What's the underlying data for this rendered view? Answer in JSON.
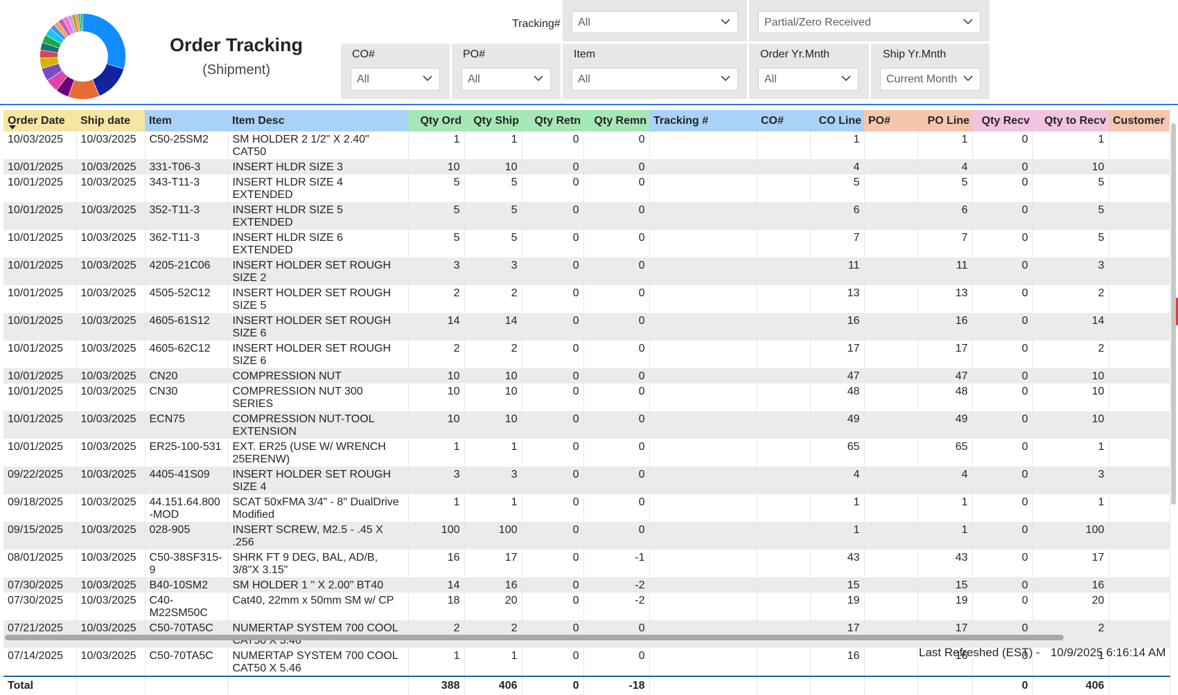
{
  "header": {
    "title": "Order Tracking",
    "subtitle": "(Shipment)"
  },
  "donut": {
    "colors": [
      "#118dff",
      "#12239e",
      "#e66c37",
      "#6b007b",
      "#e044a7",
      "#744ec2",
      "#d9b300",
      "#d64550",
      "#197278",
      "#1aab40",
      "#15c6f4",
      "#4092ff",
      "#ffa058",
      "#be5dc9",
      "#f472d0",
      "#b5a1ff",
      "#c4a200",
      "#ff8080",
      "#00db66",
      "#2c8c92"
    ],
    "values": [
      30,
      14,
      12,
      5,
      5,
      5,
      4,
      3,
      3,
      3,
      3,
      2,
      2,
      2,
      2,
      1.5,
      1.5,
      1,
      1,
      0.8
    ]
  },
  "filters": {
    "tracking_label": "Tracking#",
    "tracking_value": "All",
    "received_value": "Partial/Zero Received",
    "co_title": "CO#",
    "co_value": "All",
    "po_title": "PO#",
    "po_value": "All",
    "item_title": "Item",
    "item_value": "All",
    "order_title": "Order Yr.Mnth",
    "order_value": "All",
    "ship_title": "Ship Yr.Mnth",
    "ship_value": "Current Month"
  },
  "table": {
    "columns": [
      {
        "label": "Order Date",
        "color": "#f5e6a3"
      },
      {
        "label": "Ship date",
        "color": "#f5e6a3"
      },
      {
        "label": "Item",
        "color": "#a9d3f6"
      },
      {
        "label": "Item Desc",
        "color": "#a9d3f6"
      },
      {
        "label": "Qty Ord",
        "color": "#a6e7b8"
      },
      {
        "label": "Qty Ship",
        "color": "#a6e7b8"
      },
      {
        "label": "Qty Retn",
        "color": "#a6e7b8"
      },
      {
        "label": "Qty Remn",
        "color": "#a6e7b8"
      },
      {
        "label": "Tracking #",
        "color": "#a9d3f6"
      },
      {
        "label": "CO#",
        "color": "#a9d3f6"
      },
      {
        "label": "CO Line",
        "color": "#a9d3f6"
      },
      {
        "label": "PO#",
        "color": "#f5c6ad"
      },
      {
        "label": "PO Line",
        "color": "#f5c6ad"
      },
      {
        "label": "Qty Recv",
        "color": "#f3c4e2"
      },
      {
        "label": "Qty to Recv",
        "color": "#f3c4e2"
      },
      {
        "label": "Customer",
        "color": "#f5c6ad"
      }
    ],
    "rows": [
      {
        "order_date": "10/03/2025",
        "ship_date": "10/03/2025",
        "item": "C50-25SM2",
        "desc": "SM HOLDER 2 1/2\" X 2.40\" CAT50",
        "qty_ord": "1",
        "qty_ship": "1",
        "qty_retn": "0",
        "qty_remn": "0",
        "co_line": "1",
        "po_line": "1",
        "qty_recv": "0",
        "qty_to_recv": "1",
        "tall": true
      },
      {
        "order_date": "10/01/2025",
        "ship_date": "10/03/2025",
        "item": "331-T06-3",
        "desc": "INSERT HLDR SIZE 3",
        "qty_ord": "10",
        "qty_ship": "10",
        "qty_retn": "0",
        "qty_remn": "0",
        "co_line": "4",
        "po_line": "4",
        "qty_recv": "0",
        "qty_to_recv": "10"
      },
      {
        "order_date": "10/01/2025",
        "ship_date": "10/03/2025",
        "item": "343-T11-3",
        "desc": "INSERT HLDR SIZE 4 EXTENDED",
        "qty_ord": "5",
        "qty_ship": "5",
        "qty_retn": "0",
        "qty_remn": "0",
        "co_line": "5",
        "po_line": "5",
        "qty_recv": "0",
        "qty_to_recv": "5"
      },
      {
        "order_date": "10/01/2025",
        "ship_date": "10/03/2025",
        "item": "352-T11-3",
        "desc": "INSERT HLDR SIZE 5 EXTENDED",
        "qty_ord": "5",
        "qty_ship": "5",
        "qty_retn": "0",
        "qty_remn": "0",
        "co_line": "6",
        "po_line": "6",
        "qty_recv": "0",
        "qty_to_recv": "5"
      },
      {
        "order_date": "10/01/2025",
        "ship_date": "10/03/2025",
        "item": "362-T11-3",
        "desc": "INSERT HLDR SIZE 6 EXTENDED",
        "qty_ord": "5",
        "qty_ship": "5",
        "qty_retn": "0",
        "qty_remn": "0",
        "co_line": "7",
        "po_line": "7",
        "qty_recv": "0",
        "qty_to_recv": "5"
      },
      {
        "order_date": "10/01/2025",
        "ship_date": "10/03/2025",
        "item": "4205-21C06",
        "desc": "INSERT HOLDER SET ROUGH SIZE 2",
        "qty_ord": "3",
        "qty_ship": "3",
        "qty_retn": "0",
        "qty_remn": "0",
        "co_line": "11",
        "po_line": "11",
        "qty_recv": "0",
        "qty_to_recv": "3"
      },
      {
        "order_date": "10/01/2025",
        "ship_date": "10/03/2025",
        "item": "4505-52C12",
        "desc": "INSERT HOLDER SET ROUGH SIZE 5",
        "qty_ord": "2",
        "qty_ship": "2",
        "qty_retn": "0",
        "qty_remn": "0",
        "co_line": "13",
        "po_line": "13",
        "qty_recv": "0",
        "qty_to_recv": "2"
      },
      {
        "order_date": "10/01/2025",
        "ship_date": "10/03/2025",
        "item": "4605-61S12",
        "desc": "INSERT HOLDER SET ROUGH SIZE 6",
        "qty_ord": "14",
        "qty_ship": "14",
        "qty_retn": "0",
        "qty_remn": "0",
        "co_line": "16",
        "po_line": "16",
        "qty_recv": "0",
        "qty_to_recv": "14"
      },
      {
        "order_date": "10/01/2025",
        "ship_date": "10/03/2025",
        "item": "4605-62C12",
        "desc": "INSERT HOLDER SET ROUGH SIZE 6",
        "qty_ord": "2",
        "qty_ship": "2",
        "qty_retn": "0",
        "qty_remn": "0",
        "co_line": "17",
        "po_line": "17",
        "qty_recv": "0",
        "qty_to_recv": "2"
      },
      {
        "order_date": "10/01/2025",
        "ship_date": "10/03/2025",
        "item": "CN20",
        "desc": "COMPRESSION NUT",
        "qty_ord": "10",
        "qty_ship": "10",
        "qty_retn": "0",
        "qty_remn": "0",
        "co_line": "47",
        "po_line": "47",
        "qty_recv": "0",
        "qty_to_recv": "10"
      },
      {
        "order_date": "10/01/2025",
        "ship_date": "10/03/2025",
        "item": "CN30",
        "desc": "COMPRESSION NUT 300 SERIES",
        "qty_ord": "10",
        "qty_ship": "10",
        "qty_retn": "0",
        "qty_remn": "0",
        "co_line": "48",
        "po_line": "48",
        "qty_recv": "0",
        "qty_to_recv": "10"
      },
      {
        "order_date": "10/01/2025",
        "ship_date": "10/03/2025",
        "item": "ECN75",
        "desc": "COMPRESSION NUT-TOOL EXTENSION",
        "qty_ord": "10",
        "qty_ship": "10",
        "qty_retn": "0",
        "qty_remn": "0",
        "co_line": "49",
        "po_line": "49",
        "qty_recv": "0",
        "qty_to_recv": "10"
      },
      {
        "order_date": "10/01/2025",
        "ship_date": "10/03/2025",
        "item": "ER25-100-531",
        "desc": "EXT. ER25 (USE W/ WRENCH 25ERENW)",
        "qty_ord": "1",
        "qty_ship": "1",
        "qty_retn": "0",
        "qty_remn": "0",
        "co_line": "65",
        "po_line": "65",
        "qty_recv": "0",
        "qty_to_recv": "1"
      },
      {
        "order_date": "09/22/2025",
        "ship_date": "10/03/2025",
        "item": "4405-41S09",
        "desc": "INSERT HOLDER SET ROUGH SIZE 4",
        "qty_ord": "3",
        "qty_ship": "3",
        "qty_retn": "0",
        "qty_remn": "0",
        "co_line": "4",
        "po_line": "4",
        "qty_recv": "0",
        "qty_to_recv": "3"
      },
      {
        "order_date": "09/18/2025",
        "ship_date": "10/03/2025",
        "item": "44.151.64.800 -MOD",
        "desc": "SCAT 50xFMA 3/4\" - 8\" DualDrive Modified",
        "qty_ord": "1",
        "qty_ship": "1",
        "qty_retn": "0",
        "qty_remn": "0",
        "co_line": "1",
        "po_line": "1",
        "qty_recv": "0",
        "qty_to_recv": "1"
      },
      {
        "order_date": "09/15/2025",
        "ship_date": "10/03/2025",
        "item": "028-905",
        "desc": "INSERT SCREW, M2.5 - .45 X .256",
        "qty_ord": "100",
        "qty_ship": "100",
        "qty_retn": "0",
        "qty_remn": "0",
        "co_line": "1",
        "po_line": "1",
        "qty_recv": "0",
        "qty_to_recv": "100"
      },
      {
        "order_date": "08/01/2025",
        "ship_date": "10/03/2025",
        "item": "C50-38SF315-9",
        "desc": "SHRK FT 9 DEG, BAL, AD/B, 3/8\"X 3.15\"",
        "qty_ord": "16",
        "qty_ship": "17",
        "qty_retn": "0",
        "qty_remn": "-1",
        "co_line": "43",
        "po_line": "43",
        "qty_recv": "0",
        "qty_to_recv": "17"
      },
      {
        "order_date": "07/30/2025",
        "ship_date": "10/03/2025",
        "item": "B40-10SM2",
        "desc": "SM HOLDER 1 \" X 2.00\" BT40",
        "qty_ord": "14",
        "qty_ship": "16",
        "qty_retn": "0",
        "qty_remn": "-2",
        "co_line": "15",
        "po_line": "15",
        "qty_recv": "0",
        "qty_to_recv": "16"
      },
      {
        "order_date": "07/30/2025",
        "ship_date": "10/03/2025",
        "item": "C40-M22SM50C",
        "desc": "Cat40, 22mm x 50mm SM w/ CP",
        "qty_ord": "18",
        "qty_ship": "20",
        "qty_retn": "0",
        "qty_remn": "-2",
        "co_line": "19",
        "po_line": "19",
        "qty_recv": "0",
        "qty_to_recv": "20"
      },
      {
        "order_date": "07/21/2025",
        "ship_date": "10/03/2025",
        "item": "C50-70TA5C",
        "desc": "NUMERTAP SYSTEM 700 COOL CAT50 X 5.46",
        "qty_ord": "2",
        "qty_ship": "2",
        "qty_retn": "0",
        "qty_remn": "0",
        "co_line": "17",
        "po_line": "17",
        "qty_recv": "0",
        "qty_to_recv": "2"
      },
      {
        "order_date": "07/14/2025",
        "ship_date": "10/03/2025",
        "item": "C50-70TA5C",
        "desc": "NUMERTAP SYSTEM 700 COOL CAT50 X 5.46",
        "qty_ord": "1",
        "qty_ship": "1",
        "qty_retn": "0",
        "qty_remn": "0",
        "co_line": "16",
        "po_line": "16",
        "qty_recv": "0",
        "qty_to_recv": "1"
      }
    ],
    "total": {
      "label": "Total",
      "qty_ord": "388",
      "qty_ship": "406",
      "qty_retn": "0",
      "qty_remn": "-18",
      "qty_recv": "0",
      "qty_to_recv": "406"
    }
  },
  "footer": {
    "refresh_label": "Last Refreshed (EST) -",
    "refresh_time": "10/9/2025 6:16:14 AM"
  }
}
